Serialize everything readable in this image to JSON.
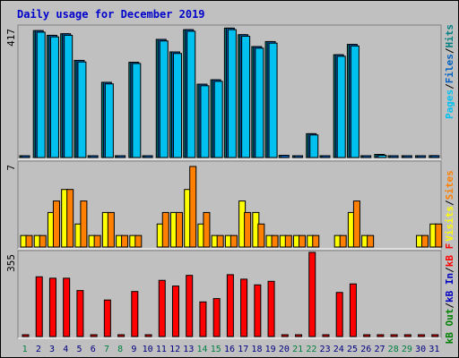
{
  "title": "Daily usage for December 2019",
  "colors": {
    "background": "#C0C0C0",
    "title": "#0000CC",
    "pages": "#00C0F0",
    "files": "#0060C0",
    "hits": "#008080",
    "visits": "#FFFF00",
    "sites": "#FF8000",
    "kbytes": "#FF0000",
    "kb_in": "#0000C0",
    "kb_out": "#008000",
    "weekend_day": "#008040",
    "weekday": "#000080"
  },
  "chart_data": [
    {
      "type": "bar",
      "name": "hits-pages-files",
      "categories": [
        "1",
        "2",
        "3",
        "4",
        "5",
        "6",
        "7",
        "8",
        "9",
        "10",
        "11",
        "12",
        "13",
        "14",
        "15",
        "16",
        "17",
        "18",
        "19",
        "20",
        "21",
        "22",
        "23",
        "24",
        "25",
        "26",
        "27",
        "28",
        "29",
        "30",
        "31"
      ],
      "ymax_label": "417",
      "right_label_parts": [
        "Pages",
        "Files",
        "Hits"
      ],
      "series": [
        {
          "name": "Hits",
          "values": [
            4,
            405,
            390,
            395,
            310,
            3,
            240,
            4,
            304,
            0,
            377,
            337,
            408,
            234,
            248,
            413,
            392,
            354,
            370,
            7,
            3,
            76,
            0,
            328,
            361,
            0,
            10,
            4,
            0,
            4,
            6
          ]
        },
        {
          "name": "Files",
          "values": [
            4,
            405,
            390,
            395,
            310,
            3,
            240,
            4,
            304,
            0,
            377,
            337,
            408,
            234,
            248,
            413,
            392,
            354,
            370,
            7,
            3,
            76,
            0,
            328,
            361,
            0,
            10,
            4,
            0,
            4,
            6
          ]
        },
        {
          "name": "Pages",
          "values": [
            0,
            400,
            385,
            390,
            305,
            0,
            235,
            0,
            300,
            0,
            372,
            332,
            403,
            229,
            243,
            408,
            387,
            349,
            365,
            0,
            0,
            72,
            0,
            323,
            356,
            0,
            7,
            0,
            0,
            0,
            0
          ]
        }
      ],
      "weekend_days": [
        1,
        7,
        8,
        14,
        15,
        21,
        22,
        28,
        29
      ]
    },
    {
      "type": "bar",
      "name": "visits-sites",
      "categories": [
        "1",
        "2",
        "3",
        "4",
        "5",
        "6",
        "7",
        "8",
        "9",
        "10",
        "11",
        "12",
        "13",
        "14",
        "15",
        "16",
        "17",
        "18",
        "19",
        "20",
        "21",
        "22",
        "23",
        "24",
        "25",
        "26",
        "27",
        "28",
        "29",
        "30",
        "31"
      ],
      "ymax_label": "7",
      "right_label_parts": [
        "Visits",
        "Sites"
      ],
      "series": [
        {
          "name": "Sites",
          "values": [
            1,
            1,
            4,
            5,
            4,
            1,
            3,
            1,
            1,
            0,
            3,
            3,
            7,
            3,
            1,
            1,
            3,
            2,
            1,
            1,
            1,
            1,
            0,
            1,
            4,
            1,
            0,
            0,
            0,
            1,
            2
          ]
        },
        {
          "name": "Visits",
          "values": [
            1,
            1,
            3,
            5,
            2,
            1,
            3,
            1,
            1,
            0,
            2,
            3,
            5,
            2,
            1,
            1,
            4,
            3,
            1,
            1,
            1,
            1,
            0,
            1,
            3,
            1,
            0,
            0,
            0,
            1,
            2
          ]
        }
      ]
    },
    {
      "type": "bar",
      "name": "kbytes",
      "categories": [
        "1",
        "2",
        "3",
        "4",
        "5",
        "6",
        "7",
        "8",
        "9",
        "10",
        "11",
        "12",
        "13",
        "14",
        "15",
        "16",
        "17",
        "18",
        "19",
        "20",
        "21",
        "22",
        "23",
        "24",
        "25",
        "26",
        "27",
        "28",
        "29",
        "30",
        "31"
      ],
      "ymax_label": "355",
      "right_label_parts": [
        "kB Out",
        "kB In",
        "kB F"
      ],
      "series": [
        {
          "name": "kB F",
          "values": [
            0,
            252,
            246,
            246,
            194,
            0,
            154,
            0,
            190,
            0,
            237,
            213,
            258,
            146,
            160,
            261,
            242,
            218,
            233,
            0,
            0,
            355,
            0,
            186,
            222,
            0,
            0,
            0,
            0,
            0,
            0
          ]
        }
      ]
    }
  ]
}
